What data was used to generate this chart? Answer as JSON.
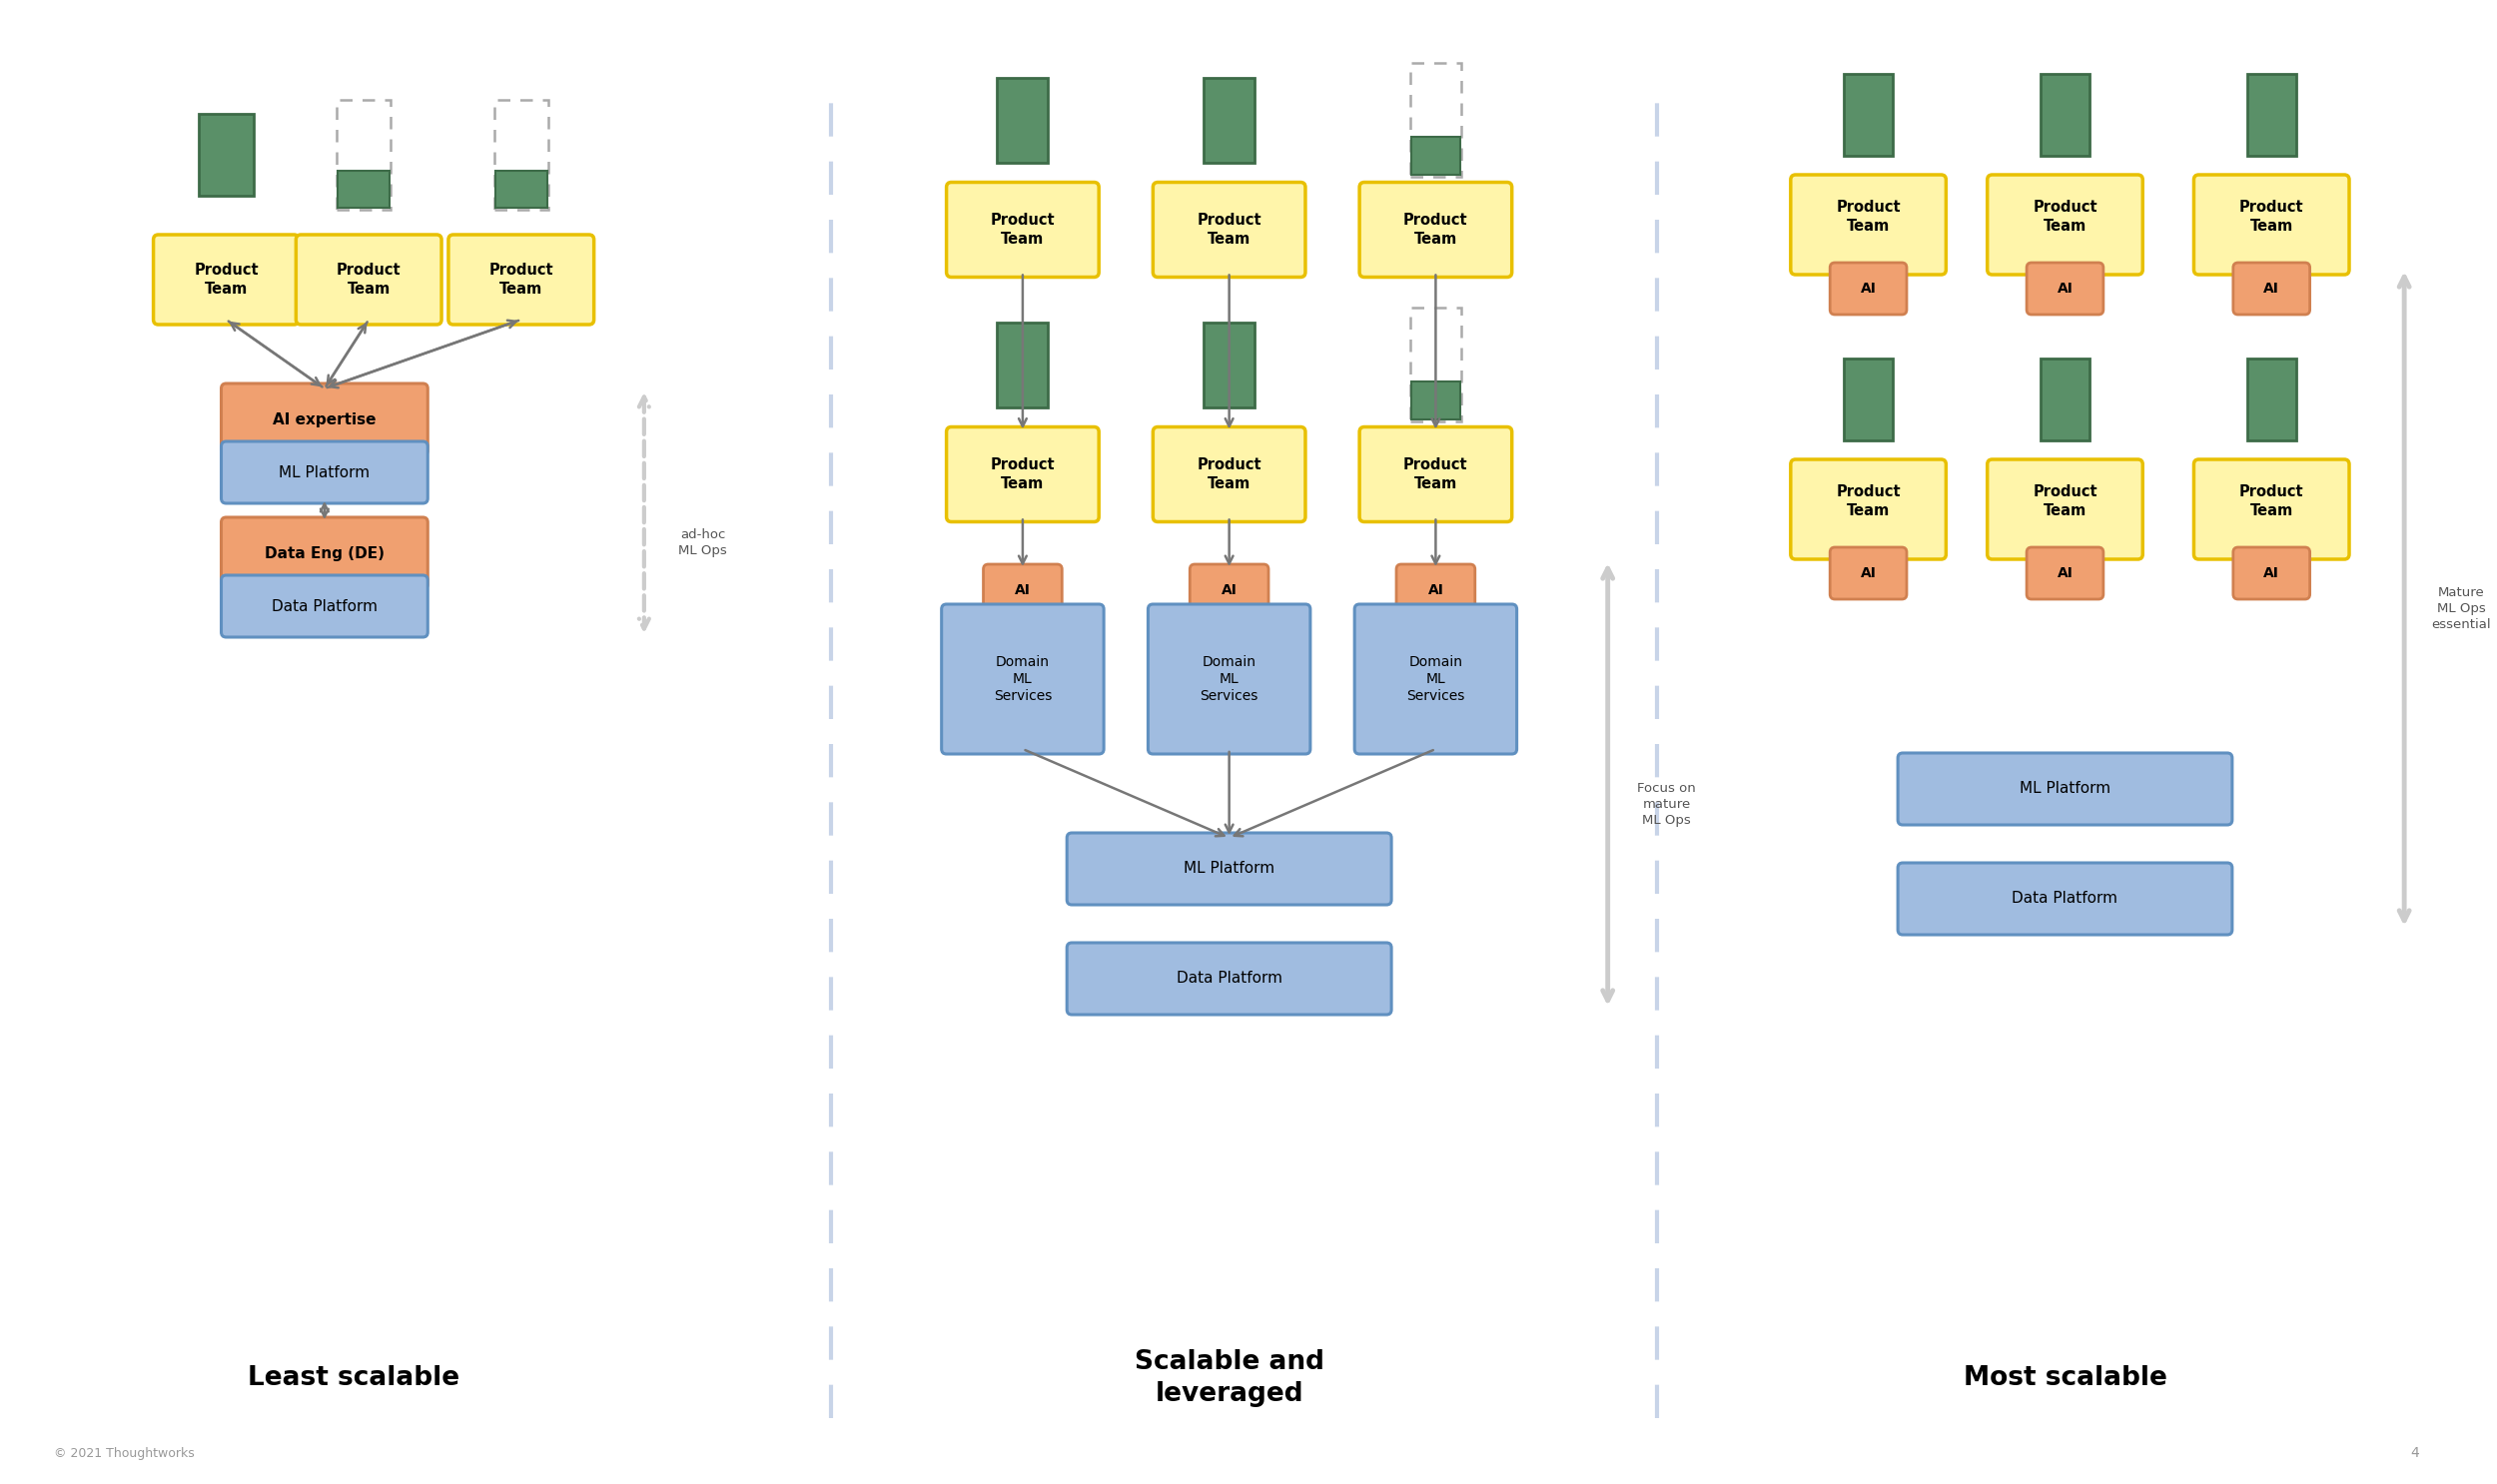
{
  "bg_color": "#ffffff",
  "divider_color": "#c8d4e8",
  "green_fill": "#5a9068",
  "green_edge": "#3d6b48",
  "yellow_fill": "#fff5aa",
  "yellow_edge": "#e8c000",
  "orange_fill": "#f0a070",
  "orange_edge": "#d08050",
  "blue_fill": "#a0bce0",
  "blue_edge": "#6090c0",
  "arrow_color": "#777777",
  "dbl_arrow_color": "#cccccc",
  "footer_text": "© 2021 Thoughtworks",
  "page_num": "4",
  "d1_title": "Least scalable",
  "d2_title": "Scalable and\nleveraged",
  "d3_title": "Most scalable",
  "d1_annotation": "ad-hoc\nML Ops",
  "d2_annotation": "Focus on\nmature\nML Ops",
  "d3_annotation": "Mature\nML Ops\nessential"
}
